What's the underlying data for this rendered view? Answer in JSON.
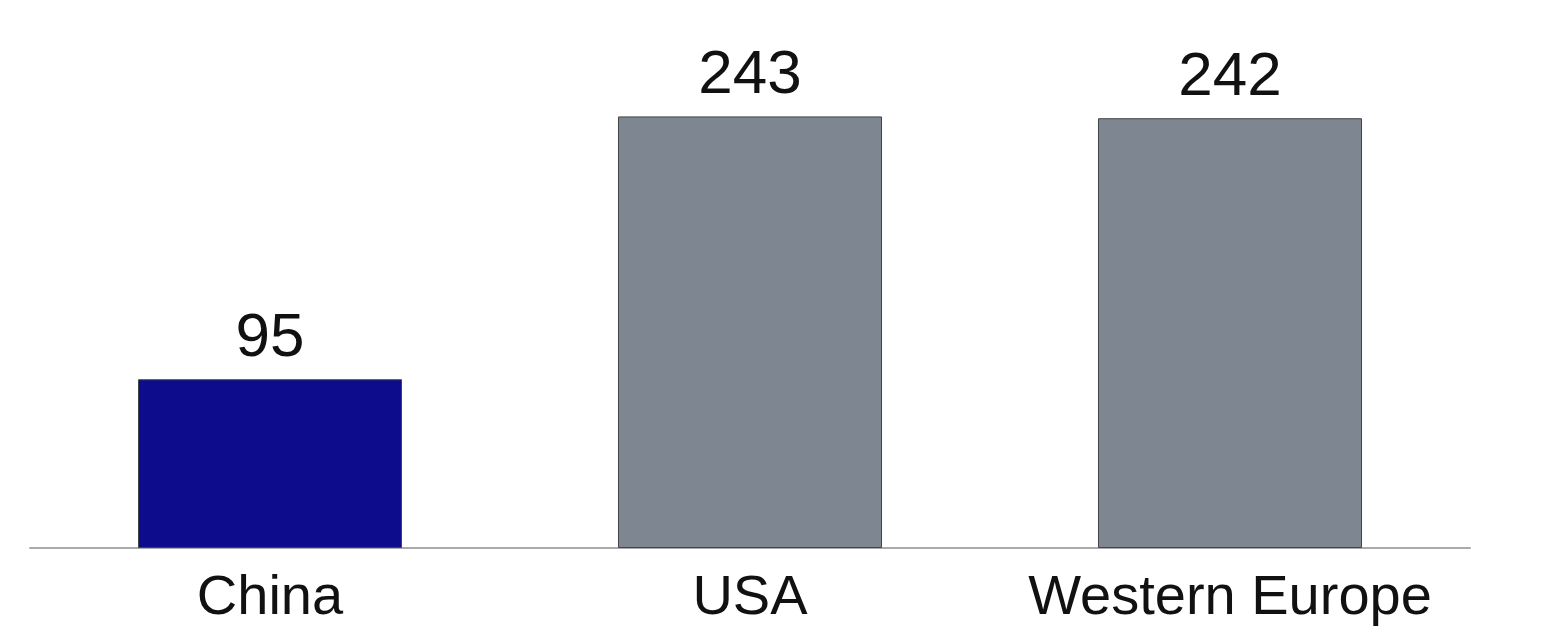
{
  "chart_data": {
    "type": "bar",
    "categories": [
      "China",
      "USA",
      "Western Europe"
    ],
    "values": [
      95,
      243,
      242
    ],
    "colors": [
      "#0c0c8c",
      "#7e8692",
      "#7e8692"
    ],
    "data_labels": true,
    "grid": false
  }
}
